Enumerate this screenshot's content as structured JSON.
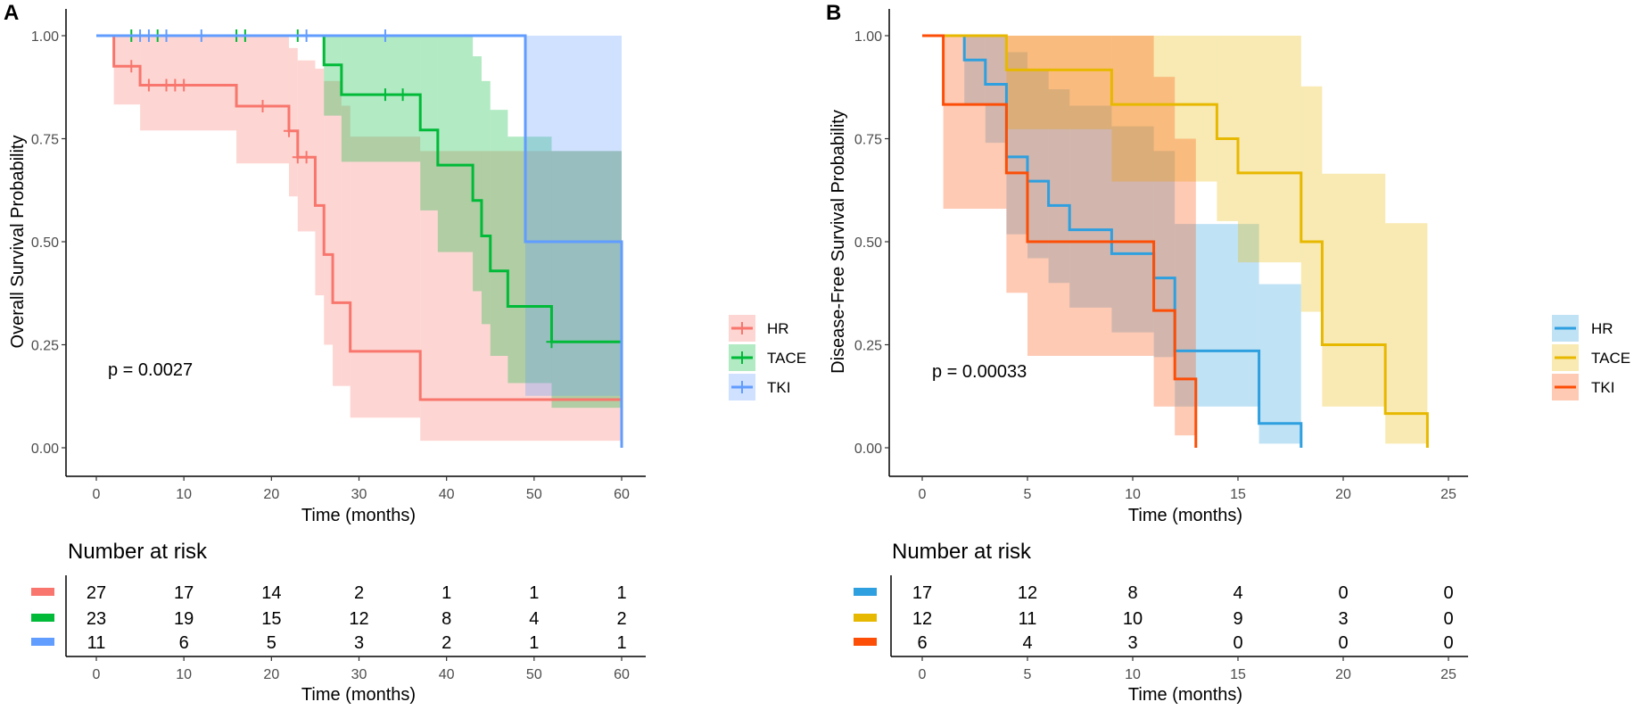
{
  "chart_data": [
    {
      "panel_label": "A",
      "type": "line",
      "subtype": "kaplan-meier step curves with confidence bands",
      "xlabel": "Time (months)",
      "ylabel": "Overall Survival Probability",
      "xlim": [
        0,
        60
      ],
      "ylim": [
        0,
        1
      ],
      "x_ticks": [
        "0",
        "10",
        "20",
        "30",
        "40",
        "50",
        "60"
      ],
      "x_tick_values": [
        0,
        10,
        20,
        30,
        40,
        50,
        60
      ],
      "y_ticks": [
        "0.00",
        "0.25",
        "0.50",
        "0.75",
        "1.00"
      ],
      "y_tick_values": [
        0,
        0.25,
        0.5,
        0.75,
        1
      ],
      "grid": false,
      "legend_position": "right",
      "annotation": "p = 0.0027",
      "series": [
        {
          "name": "HR",
          "color": "#F8766D",
          "end": 60,
          "curve": [
            [
              0,
              1
            ],
            [
              2,
              0.926
            ],
            [
              5,
              0.88
            ],
            [
              16,
              0.829
            ],
            [
              22,
              0.769
            ],
            [
              23,
              0.705
            ],
            [
              25,
              0.588
            ],
            [
              26,
              0.469
            ],
            [
              27,
              0.352
            ],
            [
              29,
              0.234
            ],
            [
              37,
              0.117
            ]
          ],
          "censored": [
            4,
            6,
            8,
            9,
            10,
            19,
            22,
            23,
            24
          ],
          "ci": [
            [
              0,
              1,
              1
            ],
            [
              2,
              0.833,
              1
            ],
            [
              5,
              0.77,
              1
            ],
            [
              16,
              0.69,
              1
            ],
            [
              22,
              0.61,
              0.97
            ],
            [
              23,
              0.525,
              0.94
            ],
            [
              25,
              0.37,
              0.92
            ],
            [
              26,
              0.25,
              0.89
            ],
            [
              27,
              0.15,
              0.89
            ],
            [
              28,
              0.15,
              0.83
            ],
            [
              29,
              0.073,
              0.755
            ],
            [
              37,
              0.017,
              0.72
            ]
          ]
        },
        {
          "name": "TACE",
          "color": "#00BA38",
          "end": 60,
          "curve": [
            [
              0,
              1
            ],
            [
              26,
              0.929
            ],
            [
              28,
              0.857
            ],
            [
              37,
              0.771
            ],
            [
              39,
              0.686
            ],
            [
              43,
              0.6
            ],
            [
              44,
              0.514
            ],
            [
              45,
              0.429
            ],
            [
              47,
              0.343
            ],
            [
              52,
              0.257
            ]
          ],
          "censored": [
            4,
            7,
            16,
            17,
            23,
            33,
            35,
            52
          ],
          "ci": [
            [
              0,
              1,
              1
            ],
            [
              26,
              0.806,
              1
            ],
            [
              28,
              0.694,
              1
            ],
            [
              37,
              0.576,
              1
            ],
            [
              39,
              0.475,
              1
            ],
            [
              43,
              0.38,
              0.95
            ],
            [
              44,
              0.3,
              0.89
            ],
            [
              45,
              0.223,
              0.82
            ],
            [
              47,
              0.157,
              0.755
            ],
            [
              52,
              0.097,
              0.72
            ]
          ]
        },
        {
          "name": "TKI",
          "color": "#619CFF",
          "end": 60,
          "curve": [
            [
              0,
              1
            ],
            [
              49,
              0.5
            ],
            [
              60,
              0
            ]
          ],
          "censored": [
            5,
            6,
            8,
            12,
            24,
            33
          ],
          "ci": [
            [
              0,
              1,
              1
            ],
            [
              49,
              0.126,
              1
            ]
          ]
        }
      ],
      "risk_table": {
        "title": "Number at risk",
        "xlabel": "Time (months)",
        "times": [
          0,
          10,
          20,
          30,
          40,
          50,
          60
        ],
        "rows": [
          {
            "name": "HR",
            "values": [
              "27",
              "17",
              "14",
              "2",
              "1",
              "1",
              "1"
            ]
          },
          {
            "name": "TACE",
            "values": [
              "23",
              "19",
              "15",
              "12",
              "8",
              "4",
              "2"
            ]
          },
          {
            "name": "TKI",
            "values": [
              "11",
              "6",
              "5",
              "3",
              "2",
              "1",
              "1"
            ]
          }
        ]
      }
    },
    {
      "panel_label": "B",
      "type": "line",
      "subtype": "kaplan-meier step curves with confidence bands",
      "xlabel": "Time (months)",
      "ylabel": "Disease-Free Survival Probability",
      "xlim": [
        0,
        25
      ],
      "ylim": [
        0,
        1
      ],
      "x_ticks": [
        "0",
        "5",
        "10",
        "15",
        "20",
        "25"
      ],
      "x_tick_values": [
        0,
        5,
        10,
        15,
        20,
        25
      ],
      "y_ticks": [
        "0.00",
        "0.25",
        "0.50",
        "0.75",
        "1.00"
      ],
      "y_tick_values": [
        0,
        0.25,
        0.5,
        0.75,
        1
      ],
      "grid": false,
      "legend_position": "right",
      "annotation": "p = 0.00033",
      "series": [
        {
          "name": "HR",
          "color": "#2E9FDF",
          "end": 18,
          "curve": [
            [
              0,
              1
            ],
            [
              2,
              0.941
            ],
            [
              3,
              0.882
            ],
            [
              4,
              0.706
            ],
            [
              5,
              0.647
            ],
            [
              6,
              0.588
            ],
            [
              7,
              0.529
            ],
            [
              9,
              0.471
            ],
            [
              11,
              0.412
            ],
            [
              12,
              0.235
            ],
            [
              16,
              0.059
            ],
            [
              18,
              0
            ]
          ],
          "censored": [],
          "ci": [
            [
              0,
              1,
              1
            ],
            [
              2,
              0.835,
              1
            ],
            [
              3,
              0.74,
              1
            ],
            [
              4,
              0.518,
              0.96
            ],
            [
              5,
              0.46,
              0.92
            ],
            [
              6,
              0.4,
              0.87
            ],
            [
              7,
              0.34,
              0.83
            ],
            [
              9,
              0.28,
              0.78
            ],
            [
              11,
              0.22,
              0.72
            ],
            [
              12,
              0.1,
              0.543
            ],
            [
              16,
              0.01,
              0.397
            ]
          ]
        },
        {
          "name": "TACE",
          "color": "#E7B800",
          "end": 24,
          "curve": [
            [
              0,
              1
            ],
            [
              4,
              0.917
            ],
            [
              9,
              0.833
            ],
            [
              14,
              0.75
            ],
            [
              15,
              0.667
            ],
            [
              18,
              0.5
            ],
            [
              19,
              0.25
            ],
            [
              22,
              0.083
            ],
            [
              24,
              0
            ]
          ],
          "censored": [],
          "ci": [
            [
              0,
              1,
              1
            ],
            [
              4,
              0.773,
              1
            ],
            [
              9,
              0.646,
              1
            ],
            [
              14,
              0.55,
              1
            ],
            [
              15,
              0.45,
              1
            ],
            [
              18,
              0.33,
              0.877
            ],
            [
              19,
              0.1,
              0.665
            ],
            [
              22,
              0.01,
              0.545
            ]
          ]
        },
        {
          "name": "TKI",
          "color": "#FC4E07",
          "end": 13,
          "curve": [
            [
              0,
              1
            ],
            [
              1,
              0.833
            ],
            [
              4,
              0.667
            ],
            [
              5,
              0.5
            ],
            [
              11,
              0.333
            ],
            [
              12,
              0.167
            ],
            [
              13,
              0
            ]
          ],
          "censored": [],
          "ci": [
            [
              0,
              1,
              1
            ],
            [
              1,
              0.58,
              1
            ],
            [
              4,
              0.376,
              1
            ],
            [
              5,
              0.223,
              1
            ],
            [
              11,
              0.1,
              0.9
            ],
            [
              12,
              0.03,
              0.75
            ]
          ]
        }
      ],
      "risk_table": {
        "title": "Number at risk",
        "xlabel": "Time (months)",
        "times": [
          0,
          5,
          10,
          15,
          20,
          25
        ],
        "rows": [
          {
            "name": "HR",
            "values": [
              "17",
              "12",
              "8",
              "4",
              "0",
              "0"
            ]
          },
          {
            "name": "TACE",
            "values": [
              "12",
              "11",
              "10",
              "9",
              "3",
              "0"
            ]
          },
          {
            "name": "TKI",
            "values": [
              "6",
              "4",
              "3",
              "0",
              "0",
              "0"
            ]
          }
        ]
      }
    }
  ]
}
